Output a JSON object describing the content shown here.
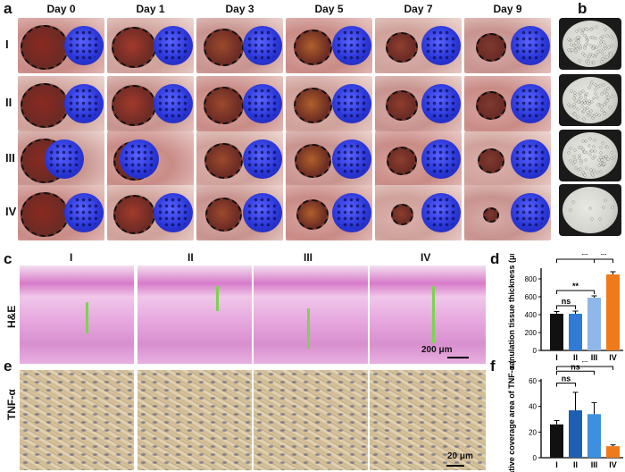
{
  "panels": {
    "a": "a",
    "b": "b",
    "c": "c",
    "d": "d",
    "e": "e",
    "f": "f"
  },
  "days": [
    "Day 0",
    "Day 1",
    "Day 3",
    "Day 5",
    "Day 7",
    "Day 9"
  ],
  "groups": [
    "I",
    "II",
    "III",
    "IV"
  ],
  "row_labels": {
    "he": "H&E",
    "tnf": "TNF-α"
  },
  "scale_bars": {
    "he": "200 μm",
    "tnf": "20 μm"
  },
  "chart_data": [
    {
      "panel": "d",
      "type": "bar",
      "categories": [
        "I",
        "II",
        "III",
        "IV"
      ],
      "values": [
        410,
        410,
        590,
        850
      ],
      "errors": [
        25,
        30,
        20,
        30
      ],
      "ylabel": "Granulation tissue thickness (μm)",
      "ylim": [
        0,
        900
      ],
      "yticks": [
        0,
        200,
        400,
        600,
        800
      ],
      "colors": [
        "#111111",
        "#2f7bd6",
        "#8fb7ea",
        "#f07a1a"
      ],
      "significance": [
        {
          "from": "I",
          "to": "II",
          "label": "ns"
        },
        {
          "from": "I",
          "to": "III",
          "label": "**"
        },
        {
          "from": "III",
          "to": "IV",
          "label": "**"
        },
        {
          "from": "I",
          "to": "IV",
          "label": "**"
        }
      ]
    },
    {
      "panel": "f",
      "type": "bar",
      "categories": [
        "I",
        "II",
        "III",
        "IV"
      ],
      "values": [
        26,
        37,
        34,
        9
      ],
      "errors": [
        3,
        14,
        9,
        1
      ],
      "ylabel": "Relative coverage area of TNF-α (%)",
      "ylim": [
        0,
        60
      ],
      "yticks": [
        0,
        20,
        40,
        60
      ],
      "colors": [
        "#111111",
        "#1f5fb3",
        "#3d8fe0",
        "#f07a1a"
      ],
      "significance": [
        {
          "from": "I",
          "to": "II",
          "label": "ns"
        },
        {
          "from": "I",
          "to": "III",
          "label": "ns"
        },
        {
          "from": "I",
          "to": "IV",
          "label": "**"
        }
      ]
    }
  ],
  "colors": {
    "arrow": "#7cd34f",
    "disc": "#2a36d8"
  }
}
